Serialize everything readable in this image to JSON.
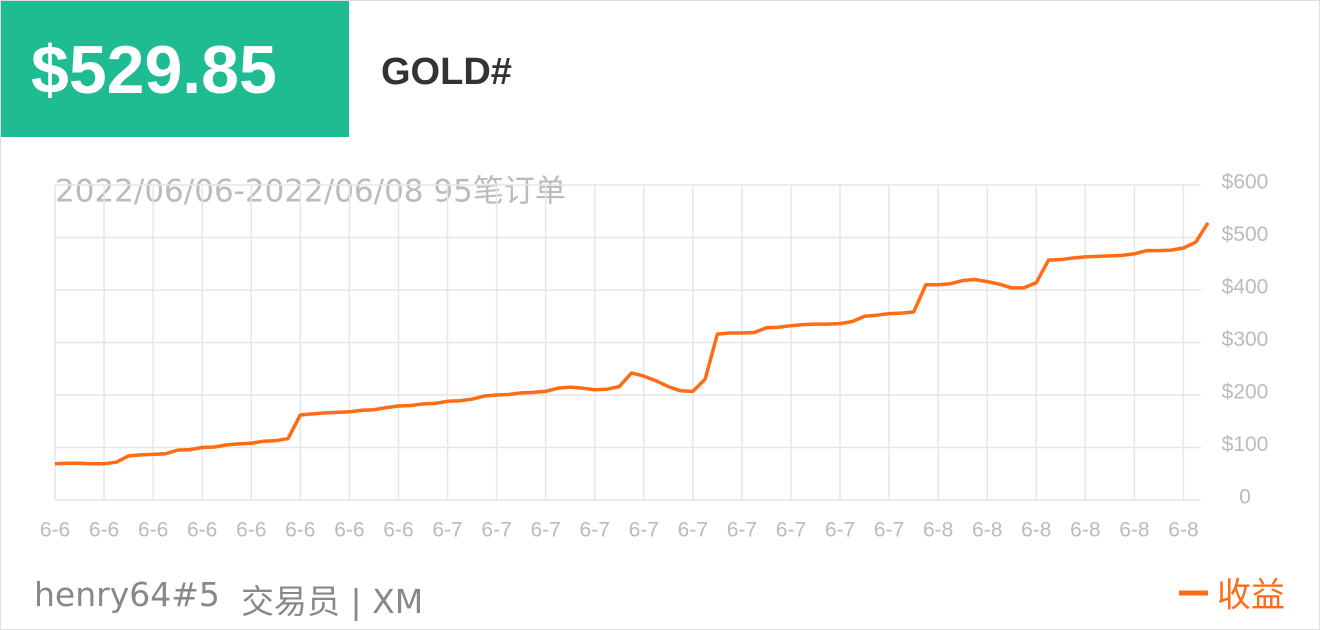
{
  "header": {
    "price": "$529.85",
    "symbol": "GOLD#"
  },
  "footer": {
    "user": "henry64#5",
    "role": "交易员 | XM"
  },
  "chart_data": {
    "type": "line",
    "subtitle": "2022/06/06-2022/06/08 95笔订单",
    "categories": [
      "6-6",
      null,
      null,
      null,
      "6-6",
      null,
      null,
      null,
      "6-6",
      null,
      null,
      null,
      "6-6",
      null,
      null,
      null,
      "6-6",
      null,
      null,
      null,
      "6-6",
      null,
      null,
      null,
      "6-6",
      null,
      null,
      null,
      "6-6",
      null,
      null,
      null,
      "6-7",
      null,
      null,
      null,
      "6-7",
      null,
      null,
      null,
      "6-7",
      null,
      null,
      null,
      "6-7",
      null,
      null,
      null,
      "6-7",
      null,
      null,
      null,
      "6-7",
      null,
      null,
      null,
      "6-7",
      null,
      null,
      null,
      "6-7",
      null,
      null,
      null,
      "6-7",
      null,
      null,
      null,
      "6-7",
      null,
      null,
      null,
      "6-8",
      null,
      null,
      null,
      "6-8",
      null,
      null,
      null,
      "6-8",
      null,
      null,
      null,
      "6-8",
      null,
      null,
      null,
      "6-8",
      null,
      null,
      null,
      "6-8",
      null,
      null
    ],
    "series": [
      {
        "name": "收益",
        "color": "#ff6c14",
        "values": [
          69,
          70,
          70,
          69,
          69,
          72,
          84,
          86,
          87,
          88,
          95,
          96,
          100,
          101,
          105,
          107,
          108,
          112,
          113,
          117,
          162,
          164,
          166,
          167,
          168,
          171,
          172,
          176,
          179,
          180,
          183,
          184,
          188,
          189,
          192,
          198,
          200,
          201,
          204,
          205,
          207,
          213,
          215,
          213,
          210,
          211,
          216,
          242,
          236,
          227,
          216,
          208,
          207,
          230,
          316,
          318,
          318,
          319,
          328,
          329,
          332,
          334,
          335,
          335,
          336,
          340,
          350,
          352,
          355,
          356,
          358,
          410,
          410,
          412,
          418,
          420,
          416,
          411,
          404,
          404,
          414,
          457,
          458,
          461,
          463,
          464,
          465,
          466,
          469,
          475,
          475,
          476,
          480,
          491,
          528
        ]
      }
    ],
    "ylim": [
      0,
      600
    ],
    "yticks": [
      0,
      {
        "value": 100,
        "label": "$100"
      },
      {
        "value": 200,
        "label": "$200"
      },
      {
        "value": 300,
        "label": "$300"
      },
      {
        "value": 400,
        "label": "$400"
      },
      {
        "value": 500,
        "label": "$500"
      },
      {
        "value": 600,
        "label": "$600"
      }
    ],
    "grid": true
  }
}
